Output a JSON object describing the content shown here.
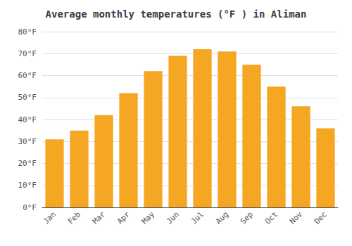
{
  "chart_data": {
    "type": "bar",
    "title": "Average monthly temperatures (°F ) in Aliman",
    "categories": [
      "Jan",
      "Feb",
      "Mar",
      "Apr",
      "May",
      "Jun",
      "Jul",
      "Aug",
      "Sep",
      "Oct",
      "Nov",
      "Dec"
    ],
    "values": [
      31,
      35,
      42,
      52,
      62,
      69,
      72,
      71,
      65,
      55,
      46,
      36
    ],
    "color": "#F5A623",
    "ylim": [
      0,
      80
    ],
    "yticks": [
      {
        "value": 0,
        "label": "0°F"
      },
      {
        "value": 10,
        "label": "10°F"
      },
      {
        "value": 20,
        "label": "20°F"
      },
      {
        "value": 30,
        "label": "30°F"
      },
      {
        "value": 40,
        "label": "40°F"
      },
      {
        "value": 50,
        "label": "50°F"
      },
      {
        "value": 60,
        "label": "60°F"
      },
      {
        "value": 70,
        "label": "70°F"
      },
      {
        "value": 80,
        "label": "80°F"
      }
    ],
    "grid": true
  }
}
